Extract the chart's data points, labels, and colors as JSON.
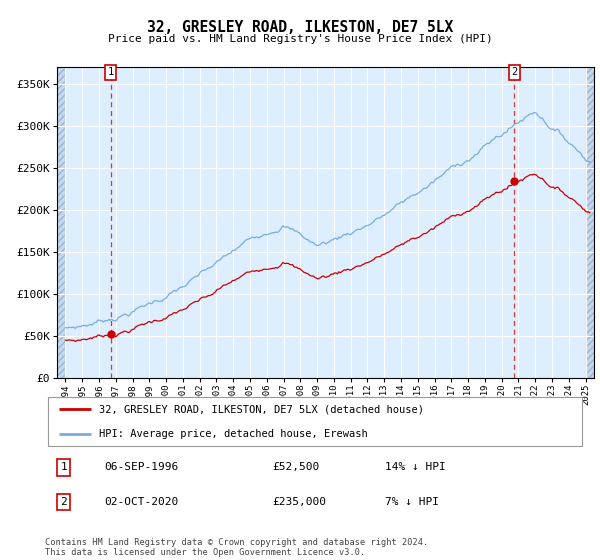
{
  "title": "32, GRESLEY ROAD, ILKESTON, DE7 5LX",
  "subtitle": "Price paid vs. HM Land Registry's House Price Index (HPI)",
  "hpi_label": "HPI: Average price, detached house, Erewash",
  "property_label": "32, GRESLEY ROAD, ILKESTON, DE7 5LX (detached house)",
  "legend_note": "Contains HM Land Registry data © Crown copyright and database right 2024.\nThis data is licensed under the Open Government Licence v3.0.",
  "purchase1": {
    "date": "06-SEP-1996",
    "price": 52500,
    "label": "1",
    "pct": "14% ↓ HPI"
  },
  "purchase2": {
    "date": "02-OCT-2020",
    "price": 235000,
    "label": "2",
    "pct": "7% ↓ HPI"
  },
  "ylim": [
    0,
    370000
  ],
  "yticks": [
    0,
    50000,
    100000,
    150000,
    200000,
    250000,
    300000,
    350000
  ],
  "ytick_labels": [
    "£0",
    "£50K",
    "£100K",
    "£150K",
    "£200K",
    "£250K",
    "£300K",
    "£350K"
  ],
  "plot_bg": "#ddeeff",
  "red_color": "#cc0000",
  "blue_color": "#7aace0",
  "vline1_x": 1996.69,
  "vline2_x": 2020.75,
  "point1_y": 52500,
  "point2_y": 235000,
  "data_start": 1994.0,
  "data_end": 2025.0,
  "xlim_left": 1993.5,
  "xlim_right": 2025.5
}
